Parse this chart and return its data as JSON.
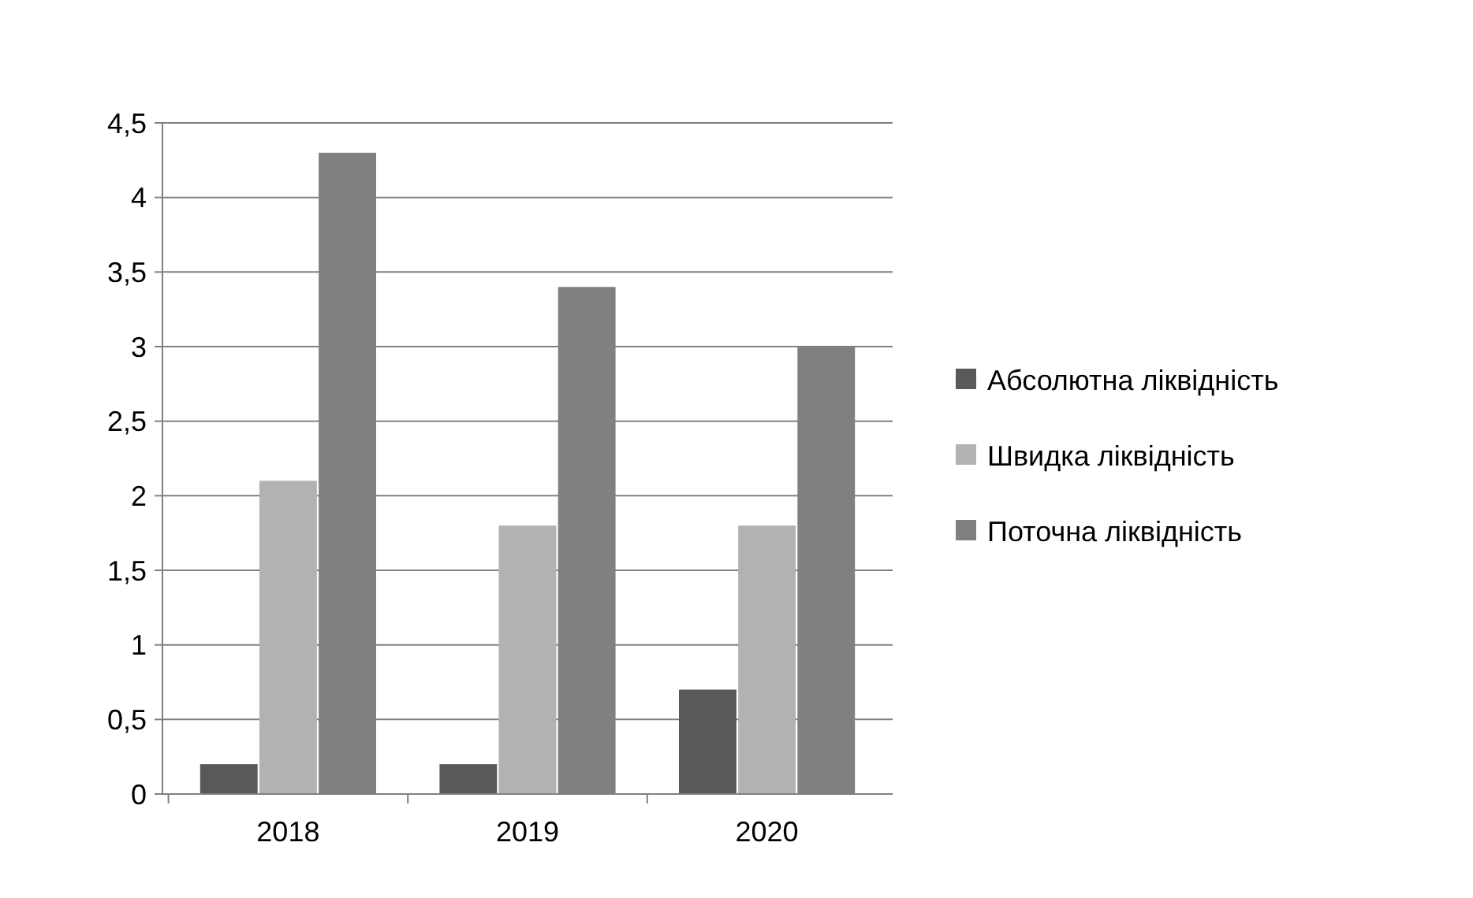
{
  "chart_data": {
    "type": "bar",
    "categories": [
      "2018",
      "2019",
      "2020"
    ],
    "series": [
      {
        "name": "Абсолютна ліквідність",
        "color": "#595959",
        "values": [
          0.2,
          0.2,
          0.7
        ]
      },
      {
        "name": "Швидка ліквідність",
        "color": "#b2b2b2",
        "values": [
          2.1,
          1.8,
          1.8
        ]
      },
      {
        "name": "Поточна ліквідність",
        "color": "#808080",
        "values": [
          4.3,
          3.4,
          3.0
        ]
      }
    ],
    "ylim": [
      0,
      4.5
    ],
    "yticks": [
      {
        "value": 0,
        "label": "0"
      },
      {
        "value": 0.5,
        "label": "0,5"
      },
      {
        "value": 1,
        "label": "1"
      },
      {
        "value": 1.5,
        "label": "1,5"
      },
      {
        "value": 2,
        "label": "2"
      },
      {
        "value": 2.5,
        "label": "2,5"
      },
      {
        "value": 3,
        "label": "3"
      },
      {
        "value": 3.5,
        "label": "3,5"
      },
      {
        "value": 4,
        "label": "4"
      },
      {
        "value": 4.5,
        "label": "4,5"
      }
    ],
    "grid": "y",
    "legend": "right"
  }
}
